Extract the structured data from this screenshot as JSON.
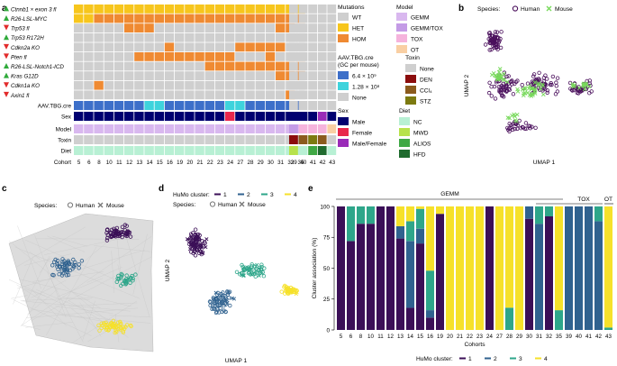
{
  "panel_letters": {
    "a": "a",
    "b": "b",
    "c": "c",
    "d": "d",
    "e": "e"
  },
  "colors": {
    "wt": "#cfcfcf",
    "het": "#f7c61c",
    "hom": "#ef8a32",
    "gemm": "#d9b8ef",
    "gemm_tox": "#c49be6",
    "tox": "#f5b3dc",
    "ot": "#f9cfa3",
    "aav_high": "#3d6fc9",
    "aav_low": "#3ed3dc",
    "aav_none": "#cfcfcf",
    "tox_none": "#cfcfcf",
    "tox_den": "#8b0d0d",
    "tox_ccl4": "#8b5b1d",
    "tox_stz": "#7c7a10",
    "sex_male": "#000070",
    "sex_female": "#e8274c",
    "sex_mf": "#9a2bb8",
    "diet_nc": "#b8f0d4",
    "diet_mwd": "#b7e24b",
    "diet_alios": "#3fa844",
    "diet_hfd": "#1f6b2e",
    "human": "#4a0f5c",
    "mouse": "#77d95a",
    "c1": "#3b0f57",
    "c2": "#30628f",
    "c3": "#2ea68a",
    "c4": "#f6e12a"
  },
  "panel_a": {
    "genes": [
      {
        "label": "Ctnnb1 × exon 3 fl",
        "kind": "up"
      },
      {
        "label": "R26-LSL-MYC",
        "kind": "up"
      },
      {
        "label": "Trp53 fl",
        "kind": "down"
      },
      {
        "label": "Trp53 R172H",
        "kind": "up"
      },
      {
        "label": "Cdkn2a KO",
        "kind": "down"
      },
      {
        "label": "Pten fl",
        "kind": "down"
      },
      {
        "label": "R26-LSL-Notch1-ICD",
        "kind": "up"
      },
      {
        "label": "Kras G12D",
        "kind": "up"
      },
      {
        "label": "Cdkn1a KO",
        "kind": "down"
      },
      {
        "label": "Axin1 fl",
        "kind": "down"
      }
    ],
    "row_labels": {
      "aav": "AAV.TBG.cre",
      "sex": "Sex",
      "model": "Model",
      "toxin": "Toxin",
      "diet": "Diet",
      "cohort": "Cohort"
    },
    "cohorts_left": [
      "5",
      "6",
      "8",
      "10",
      "11",
      "12",
      "13",
      "14",
      "15",
      "16",
      "19",
      "20",
      "21",
      "22",
      "23",
      "24",
      "27",
      "28",
      "29",
      "30",
      "31",
      "32",
      "35"
    ],
    "cohorts_right": [
      "39",
      "40",
      "41",
      "42",
      "43"
    ],
    "mut_matrix_left": [
      [
        1,
        1,
        1,
        1,
        1,
        1,
        1,
        1,
        1,
        1,
        1,
        1,
        1,
        1,
        1,
        1,
        1,
        1,
        1,
        1,
        1,
        1,
        1
      ],
      [
        1,
        1,
        2,
        2,
        2,
        2,
        2,
        2,
        2,
        2,
        2,
        2,
        2,
        2,
        2,
        2,
        2,
        2,
        2,
        2,
        2,
        2,
        2
      ],
      [
        0,
        0,
        0,
        0,
        0,
        2,
        2,
        2,
        0,
        0,
        0,
        0,
        0,
        0,
        0,
        0,
        0,
        0,
        0,
        0,
        2,
        2,
        0
      ],
      [
        0,
        0,
        0,
        0,
        0,
        0,
        0,
        0,
        0,
        0,
        0,
        0,
        0,
        0,
        0,
        0,
        0,
        0,
        0,
        0,
        0,
        0,
        0
      ],
      [
        0,
        0,
        0,
        0,
        0,
        0,
        0,
        0,
        0,
        3,
        0,
        0,
        0,
        0,
        0,
        0,
        3,
        3,
        3,
        3,
        3,
        0,
        0
      ],
      [
        0,
        0,
        0,
        0,
        0,
        0,
        3,
        3,
        3,
        3,
        3,
        3,
        3,
        3,
        3,
        3,
        0,
        0,
        0,
        3,
        0,
        0,
        0
      ],
      [
        0,
        0,
        0,
        0,
        0,
        0,
        0,
        0,
        0,
        0,
        0,
        0,
        0,
        3,
        3,
        3,
        3,
        3,
        3,
        3,
        3,
        3,
        3
      ],
      [
        0,
        0,
        0,
        0,
        0,
        0,
        0,
        0,
        0,
        0,
        0,
        0,
        0,
        0,
        0,
        0,
        0,
        0,
        0,
        0,
        3,
        3,
        3
      ],
      [
        0,
        0,
        3,
        0,
        0,
        0,
        0,
        0,
        0,
        0,
        0,
        0,
        0,
        0,
        0,
        0,
        0,
        0,
        0,
        0,
        0,
        0,
        0
      ],
      [
        0,
        0,
        0,
        0,
        0,
        0,
        0,
        0,
        0,
        0,
        0,
        0,
        0,
        0,
        0,
        0,
        0,
        0,
        0,
        0,
        0,
        3,
        0
      ]
    ],
    "aav_left": [
      "h",
      "h",
      "h",
      "h",
      "h",
      "h",
      "h",
      "l",
      "l",
      "h",
      "h",
      "h",
      "h",
      "h",
      "h",
      "l",
      "l",
      "h",
      "h",
      "h",
      "h",
      "h",
      "h"
    ],
    "aav_right": [
      "n",
      "n",
      "n",
      "n",
      "n"
    ],
    "sex_left": [
      "m",
      "m",
      "m",
      "m",
      "m",
      "m",
      "m",
      "m",
      "m",
      "m",
      "m",
      "m",
      "m",
      "m",
      "m",
      "f",
      "m",
      "m",
      "m",
      "m",
      "m",
      "m",
      "m"
    ],
    "sex_right": [
      "m",
      "m",
      "m",
      "mf",
      "m"
    ],
    "model_right": [
      "gemm_tox",
      "tox",
      "tox",
      "tox",
      "ot"
    ],
    "toxin_right": [
      "den",
      "ccl4",
      "stz",
      "ccl4",
      "none"
    ],
    "diet_right": [
      "mwd",
      "nc",
      "alios",
      "hfd",
      "nc"
    ],
    "legend": {
      "mutations_title": "Mutations",
      "wt": "WT",
      "het": "HET",
      "hom": "HOM",
      "model_title": "Model",
      "gemm": "GEMM",
      "gemm_tox": "GEMM/TOX",
      "tox": "TOX",
      "ot": "OT",
      "aav_title": "AAV.TBG.cre",
      "aav_sub": "(GC per mouse)",
      "aav_high": "6.4 × 10⁹",
      "aav_low": "1.28 × 10⁸",
      "aav_none": "None",
      "toxin_title": "Toxin",
      "tox_none": "None",
      "tox_den": "DEN",
      "tox_ccl4": "CCl₄",
      "tox_stz": "STZ",
      "sex_title": "Sex",
      "male": "Male",
      "female": "Female",
      "male_female": "Male/Female",
      "diet_title": "Diet",
      "nc": "NC",
      "mwd": "MWD",
      "alios": "ALIOS",
      "hfd": "HFD"
    }
  },
  "panel_b": {
    "species_label": "Species:",
    "human": "Human",
    "mouse": "Mouse",
    "xlabel": "UMAP 1",
    "ylabel": "UMAP 2"
  },
  "panel_c": {
    "species_label": "Species:",
    "human": "Human",
    "mouse": "Mouse"
  },
  "panel_d": {
    "cluster_label": "HuMo cluster:",
    "c1": "1",
    "c2": "2",
    "c3": "3",
    "c4": "4",
    "species_label": "Species:",
    "human": "Human",
    "mouse": "Mouse",
    "xlabel": "UMAP 1",
    "ylabel": "UMAP 2"
  },
  "chart_data": {
    "type": "bar",
    "stacked": true,
    "ylabel": "Cluster association (%)",
    "xlabel": "Cohorts",
    "ylim": [
      0,
      100
    ],
    "yticks": [
      "0",
      "25",
      "50",
      "75",
      "100"
    ],
    "group_labels": {
      "gemm": "GEMM",
      "tox": "TOX",
      "ot": "OT"
    },
    "legend_title": "HuMo cluster:",
    "categories": [
      "5",
      "6",
      "8",
      "10",
      "11",
      "12",
      "13",
      "14",
      "15",
      "16",
      "19",
      "20",
      "21",
      "22",
      "23",
      "24",
      "27",
      "28",
      "29",
      "30",
      "31",
      "32",
      "35",
      "39",
      "40",
      "41",
      "42",
      "43"
    ],
    "series": [
      {
        "name": "1",
        "values": [
          100,
          72,
          86,
          86,
          100,
          100,
          74,
          18,
          70,
          10,
          94,
          0,
          0,
          0,
          0,
          100,
          0,
          0,
          0,
          90,
          0,
          92,
          0,
          0,
          0,
          0,
          0,
          0
        ]
      },
      {
        "name": "2",
        "values": [
          0,
          0,
          0,
          0,
          0,
          0,
          10,
          54,
          12,
          6,
          0,
          0,
          0,
          0,
          0,
          0,
          0,
          0,
          0,
          10,
          86,
          0,
          0,
          100,
          100,
          100,
          88,
          0
        ]
      },
      {
        "name": "3",
        "values": [
          0,
          28,
          14,
          14,
          0,
          0,
          0,
          16,
          16,
          32,
          0,
          0,
          0,
          0,
          0,
          0,
          0,
          18,
          0,
          0,
          14,
          8,
          16,
          0,
          0,
          0,
          12,
          2
        ]
      },
      {
        "name": "4",
        "values": [
          0,
          0,
          0,
          0,
          0,
          0,
          16,
          12,
          2,
          52,
          6,
          100,
          100,
          100,
          100,
          0,
          100,
          82,
          100,
          0,
          0,
          0,
          84,
          0,
          0,
          0,
          0,
          98
        ]
      }
    ]
  }
}
